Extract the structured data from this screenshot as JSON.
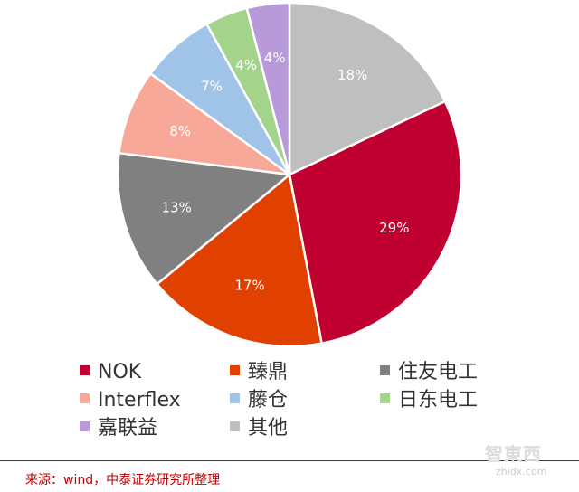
{
  "chart_data": {
    "type": "pie",
    "slices": [
      {
        "name": "其他",
        "value": 18,
        "label": "18%",
        "color": "#bfbfbf"
      },
      {
        "name": "NOK",
        "value": 29,
        "label": "29%",
        "color": "#c00030"
      },
      {
        "name": "臻鼎",
        "value": 17,
        "label": "17%",
        "color": "#e04000"
      },
      {
        "name": "住友电工",
        "value": 13,
        "label": "13%",
        "color": "#808080"
      },
      {
        "name": "Interflex",
        "value": 8,
        "label": "8%",
        "color": "#f8a898"
      },
      {
        "name": "藤仓",
        "value": 7,
        "label": "7%",
        "color": "#a0c4e8"
      },
      {
        "name": "日东电工",
        "value": 4,
        "label": "4%",
        "color": "#a4d48c"
      },
      {
        "name": "嘉联益",
        "value": 4,
        "label": "4%",
        "color": "#b89ad8"
      }
    ],
    "legend": [
      [
        "NOK",
        "臻鼎",
        "住友电工"
      ],
      [
        "Interflex",
        "藤仓",
        "日东电工"
      ],
      [
        "嘉联益",
        "其他"
      ]
    ],
    "legend_position": "bottom"
  },
  "footer": {
    "source": "来源：wind，中泰证券研究所整理"
  },
  "watermark": {
    "logo_text": "智東西",
    "url": "zhidx.com"
  }
}
